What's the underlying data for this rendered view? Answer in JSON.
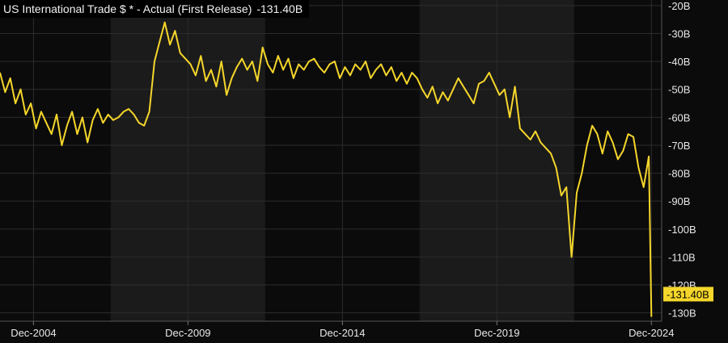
{
  "header": {
    "title": "US International Trade $ * - Actual (First Release)",
    "current_value": "-131.40B"
  },
  "colors": {
    "background": "#0b0b0b",
    "band_shade": "#1b1b1b",
    "grid": "#2c2c2c",
    "axis_text": "#e8e8e8",
    "line": "#f5d62b",
    "marker_bg": "#f5d62b",
    "marker_text": "#000000"
  },
  "chart_data": {
    "type": "line",
    "title": "US International Trade $ * - Actual (First Release)",
    "xlabel": "",
    "ylabel": "",
    "y_unit": "B",
    "ylim": [
      -133,
      -18
    ],
    "xlim": [
      "2003-11",
      "2025-04"
    ],
    "grid": true,
    "y_ticks": [
      {
        "value": -20,
        "label": "-20B"
      },
      {
        "value": -30,
        "label": "-30B"
      },
      {
        "value": -40,
        "label": "-40B"
      },
      {
        "value": -50,
        "label": "-50B"
      },
      {
        "value": -60,
        "label": "-60B"
      },
      {
        "value": -70,
        "label": "-70B"
      },
      {
        "value": -80,
        "label": "-80B"
      },
      {
        "value": -90,
        "label": "-90B"
      },
      {
        "value": -100,
        "label": "-100B"
      },
      {
        "value": -110,
        "label": "-110B"
      },
      {
        "value": -120,
        "label": "-120B"
      },
      {
        "value": -130,
        "label": "-130B"
      }
    ],
    "x_ticks": [
      {
        "date": "2004-12",
        "label": "Dec-2004"
      },
      {
        "date": "2009-12",
        "label": "Dec-2009"
      },
      {
        "date": "2014-12",
        "label": "Dec-2014"
      },
      {
        "date": "2019-12",
        "label": "Dec-2019"
      },
      {
        "date": "2024-12",
        "label": "Dec-2024"
      }
    ],
    "shaded_bands": [
      [
        "2007-06",
        "2012-06"
      ],
      [
        "2017-06",
        "2022-06"
      ]
    ],
    "last_value_label": "-131.40B",
    "series": [
      {
        "x": [
          "2003-11",
          "2004-01",
          "2004-03",
          "2004-05",
          "2004-07",
          "2004-09",
          "2004-11",
          "2005-01",
          "2005-03",
          "2005-05",
          "2005-07",
          "2005-09",
          "2005-11",
          "2006-01",
          "2006-03",
          "2006-05",
          "2006-07",
          "2006-09",
          "2006-11",
          "2007-01",
          "2007-03",
          "2007-05",
          "2007-07",
          "2007-09",
          "2007-11",
          "2008-01",
          "2008-03",
          "2008-05",
          "2008-07",
          "2008-09",
          "2008-11",
          "2009-01",
          "2009-03",
          "2009-05",
          "2009-07",
          "2009-09",
          "2009-11",
          "2010-01",
          "2010-03",
          "2010-05",
          "2010-07",
          "2010-09",
          "2010-11",
          "2011-01",
          "2011-03",
          "2011-05",
          "2011-07",
          "2011-09",
          "2011-11",
          "2012-01",
          "2012-03",
          "2012-05",
          "2012-07",
          "2012-09",
          "2012-11",
          "2013-01",
          "2013-03",
          "2013-05",
          "2013-07",
          "2013-09",
          "2013-11",
          "2014-01",
          "2014-03",
          "2014-05",
          "2014-07",
          "2014-09",
          "2014-11",
          "2015-01",
          "2015-03",
          "2015-05",
          "2015-07",
          "2015-09",
          "2015-11",
          "2016-01",
          "2016-03",
          "2016-05",
          "2016-07",
          "2016-09",
          "2016-11",
          "2017-01",
          "2017-03",
          "2017-05",
          "2017-07",
          "2017-09",
          "2017-11",
          "2018-01",
          "2018-03",
          "2018-05",
          "2018-07",
          "2018-09",
          "2018-11",
          "2019-01",
          "2019-03",
          "2019-05",
          "2019-07",
          "2019-09",
          "2019-11",
          "2020-01",
          "2020-03",
          "2020-05",
          "2020-07",
          "2020-09",
          "2020-11",
          "2021-01",
          "2021-03",
          "2021-05",
          "2021-07",
          "2021-09",
          "2021-11",
          "2022-01",
          "2022-03",
          "2022-05",
          "2022-07",
          "2022-09",
          "2022-11",
          "2023-01",
          "2023-03",
          "2023-05",
          "2023-07",
          "2023-09",
          "2023-11",
          "2024-01",
          "2024-03",
          "2024-05",
          "2024-07",
          "2024-09",
          "2024-11",
          "2024-12"
        ],
        "values": [
          -44,
          -51,
          -46,
          -55,
          -50,
          -59,
          -55,
          -64,
          -58,
          -62,
          -66,
          -59,
          -70,
          -63,
          -58,
          -66,
          -60,
          -69,
          -61,
          -57,
          -62,
          -59,
          -61,
          -60,
          -58,
          -57,
          -59,
          -62,
          -63,
          -58,
          -40,
          -33,
          -26,
          -34,
          -29,
          -37,
          -39,
          -41,
          -45,
          -38,
          -47,
          -43,
          -49,
          -40,
          -52,
          -46,
          -42,
          -39,
          -43,
          -40,
          -47,
          -35,
          -41,
          -44,
          -38,
          -43,
          -39,
          -46,
          -41,
          -43,
          -40,
          -39,
          -42,
          -44,
          -41,
          -40,
          -46,
          -42,
          -45,
          -41,
          -43,
          -40,
          -46,
          -43,
          -41,
          -45,
          -42,
          -47,
          -44,
          -48,
          -44,
          -46,
          -50,
          -53,
          -49,
          -55,
          -51,
          -54,
          -50,
          -46,
          -49,
          -52,
          -55,
          -48,
          -47,
          -44,
          -48,
          -52,
          -50,
          -60,
          -49,
          -64,
          -66,
          -68,
          -65,
          -69,
          -71,
          -73,
          -78,
          -88,
          -85,
          -110,
          -87,
          -80,
          -70,
          -63,
          -66,
          -73,
          -65,
          -69,
          -75,
          -72,
          -66,
          -67,
          -78,
          -85,
          -74,
          -131.4
        ]
      }
    ]
  }
}
